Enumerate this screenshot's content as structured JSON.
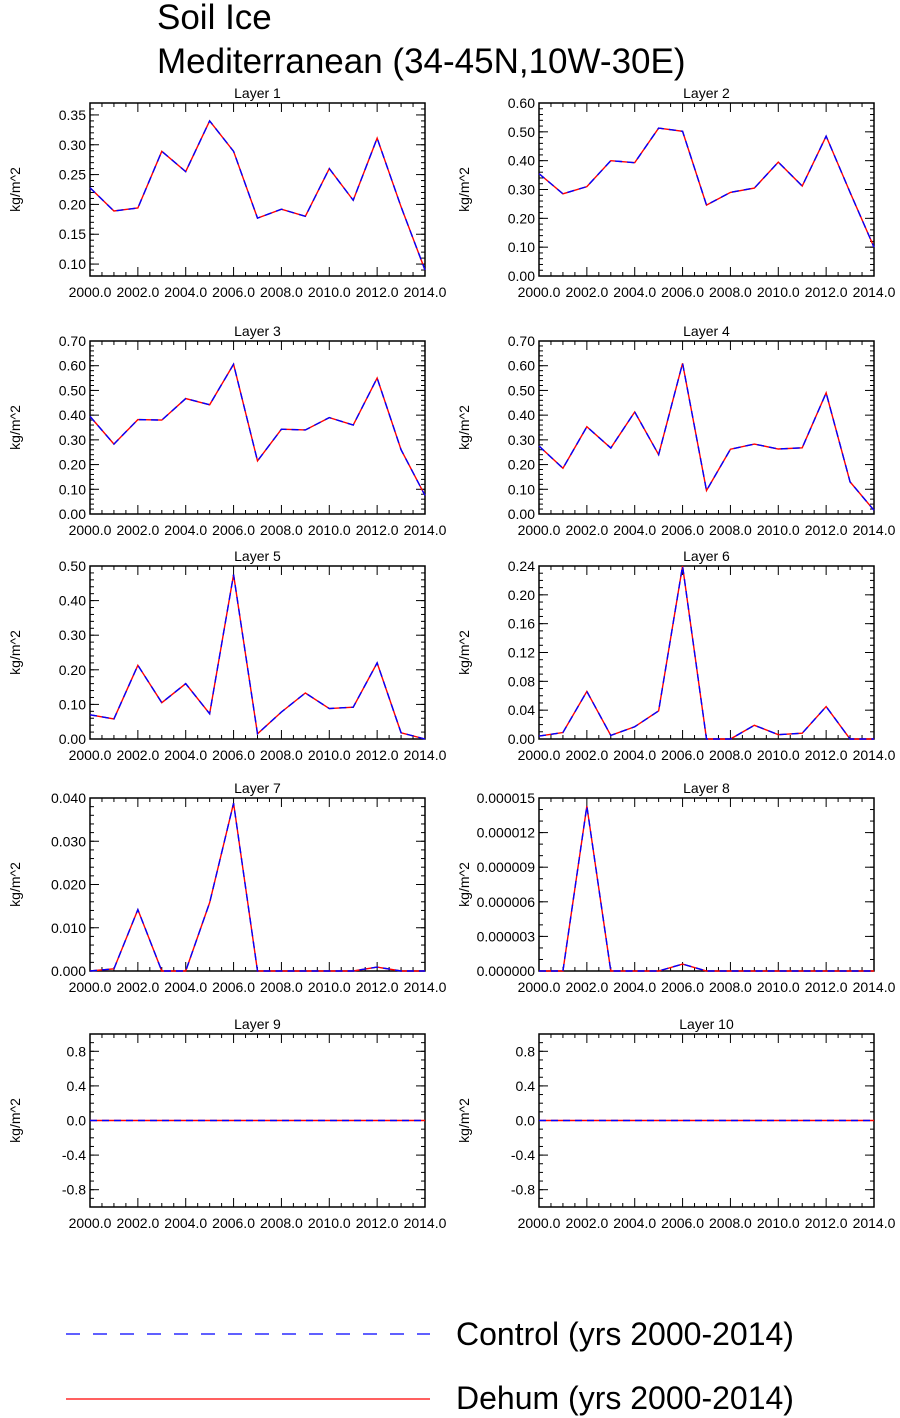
{
  "title_line1": "Soil Ice",
  "title_line2": "Mediterranean (34-45N,10W-30E)",
  "x_ticks": [
    "2000.0",
    "2002.0",
    "2004.0",
    "2006.0",
    "2008.0",
    "2010.0",
    "2012.0",
    "2014.0"
  ],
  "legend": [
    {
      "label": "Control (yrs 2000-2014)",
      "color": "#0000ff",
      "style": "dashed"
    },
    {
      "label": "Dehum (yrs 2000-2014)",
      "color": "#ff0000",
      "style": "solid"
    }
  ],
  "chart_data": [
    {
      "type": "line",
      "title": "Layer 1",
      "ylabel": "kg/m^2",
      "xlim": [
        2000,
        2014
      ],
      "ylim": [
        0.08,
        0.37
      ],
      "yticks": [
        0.1,
        0.15,
        0.2,
        0.25,
        0.3,
        0.35
      ],
      "ytick_labels": [
        "0.10",
        "0.15",
        "0.20",
        "0.25",
        "0.30",
        "0.35"
      ],
      "minor_step": 0.01,
      "x": [
        2000,
        2001,
        2002,
        2003,
        2004,
        2005,
        2006,
        2007,
        2008,
        2009,
        2010,
        2011,
        2012,
        2013,
        2014
      ],
      "series": [
        {
          "name": "Control (yrs 2000-2014)",
          "values": [
            0.228,
            0.189,
            0.194,
            0.289,
            0.255,
            0.34,
            0.289,
            0.177,
            0.192,
            0.18,
            0.26,
            0.207,
            0.311,
            0.196,
            0.09
          ]
        },
        {
          "name": "Dehum (yrs 2000-2014)",
          "values": [
            0.228,
            0.189,
            0.194,
            0.289,
            0.255,
            0.34,
            0.289,
            0.177,
            0.192,
            0.18,
            0.26,
            0.207,
            0.311,
            0.196,
            0.09
          ]
        }
      ]
    },
    {
      "type": "line",
      "title": "Layer 2",
      "ylabel": "kg/m^2",
      "xlim": [
        2000,
        2014
      ],
      "ylim": [
        0,
        0.6
      ],
      "yticks": [
        0,
        0.1,
        0.2,
        0.3,
        0.4,
        0.5,
        0.6
      ],
      "ytick_labels": [
        "0.00",
        "0.10",
        "0.20",
        "0.30",
        "0.40",
        "0.50",
        "0.60"
      ],
      "minor_step": 0.02,
      "x": [
        2000,
        2001,
        2002,
        2003,
        2004,
        2005,
        2006,
        2007,
        2008,
        2009,
        2010,
        2011,
        2012,
        2013,
        2014
      ],
      "series": [
        {
          "name": "Control (yrs 2000-2014)",
          "values": [
            0.355,
            0.285,
            0.31,
            0.4,
            0.393,
            0.513,
            0.502,
            0.246,
            0.29,
            0.305,
            0.395,
            0.312,
            0.485,
            0.29,
            0.1
          ]
        },
        {
          "name": "Dehum (yrs 2000-2014)",
          "values": [
            0.355,
            0.285,
            0.31,
            0.4,
            0.393,
            0.513,
            0.502,
            0.246,
            0.29,
            0.305,
            0.395,
            0.312,
            0.485,
            0.29,
            0.1
          ]
        }
      ]
    },
    {
      "type": "line",
      "title": "Layer 3",
      "ylabel": "kg/m^2",
      "xlim": [
        2000,
        2014
      ],
      "ylim": [
        0,
        0.7
      ],
      "yticks": [
        0,
        0.1,
        0.2,
        0.3,
        0.4,
        0.5,
        0.6,
        0.7
      ],
      "ytick_labels": [
        "0.00",
        "0.10",
        "0.20",
        "0.30",
        "0.40",
        "0.50",
        "0.60",
        "0.70"
      ],
      "minor_step": 0.02,
      "x": [
        2000,
        2001,
        2002,
        2003,
        2004,
        2005,
        2006,
        2007,
        2008,
        2009,
        2010,
        2011,
        2012,
        2013,
        2014
      ],
      "series": [
        {
          "name": "Control (yrs 2000-2014)",
          "values": [
            0.395,
            0.283,
            0.382,
            0.38,
            0.467,
            0.442,
            0.606,
            0.215,
            0.343,
            0.34,
            0.39,
            0.36,
            0.55,
            0.26,
            0.075
          ]
        },
        {
          "name": "Dehum (yrs 2000-2014)",
          "values": [
            0.395,
            0.283,
            0.382,
            0.38,
            0.467,
            0.442,
            0.606,
            0.215,
            0.343,
            0.34,
            0.39,
            0.36,
            0.55,
            0.26,
            0.075
          ]
        }
      ]
    },
    {
      "type": "line",
      "title": "Layer 4",
      "ylabel": "kg/m^2",
      "xlim": [
        2000,
        2014
      ],
      "ylim": [
        0,
        0.7
      ],
      "yticks": [
        0,
        0.1,
        0.2,
        0.3,
        0.4,
        0.5,
        0.6,
        0.7
      ],
      "ytick_labels": [
        "0.00",
        "0.10",
        "0.20",
        "0.30",
        "0.40",
        "0.50",
        "0.60",
        "0.70"
      ],
      "minor_step": 0.02,
      "x": [
        2000,
        2001,
        2002,
        2003,
        2004,
        2005,
        2006,
        2007,
        2008,
        2009,
        2010,
        2011,
        2012,
        2013,
        2014
      ],
      "series": [
        {
          "name": "Control (yrs 2000-2014)",
          "values": [
            0.275,
            0.185,
            0.353,
            0.267,
            0.413,
            0.24,
            0.61,
            0.095,
            0.262,
            0.283,
            0.263,
            0.268,
            0.49,
            0.13,
            0.015
          ]
        },
        {
          "name": "Dehum (yrs 2000-2014)",
          "values": [
            0.275,
            0.185,
            0.353,
            0.267,
            0.413,
            0.24,
            0.61,
            0.095,
            0.262,
            0.283,
            0.263,
            0.268,
            0.49,
            0.13,
            0.015
          ]
        }
      ]
    },
    {
      "type": "line",
      "title": "Layer 5",
      "ylabel": "kg/m^2",
      "xlim": [
        2000,
        2014
      ],
      "ylim": [
        0,
        0.5
      ],
      "yticks": [
        0,
        0.1,
        0.2,
        0.3,
        0.4,
        0.5
      ],
      "ytick_labels": [
        "0.00",
        "0.10",
        "0.20",
        "0.30",
        "0.40",
        "0.50"
      ],
      "minor_step": 0.02,
      "x": [
        2000,
        2001,
        2002,
        2003,
        2004,
        2005,
        2006,
        2007,
        2008,
        2009,
        2010,
        2011,
        2012,
        2013,
        2014
      ],
      "series": [
        {
          "name": "Control (yrs 2000-2014)",
          "values": [
            0.07,
            0.058,
            0.213,
            0.105,
            0.16,
            0.073,
            0.475,
            0.015,
            0.078,
            0.133,
            0.088,
            0.092,
            0.22,
            0.018,
            0.0
          ]
        },
        {
          "name": "Dehum (yrs 2000-2014)",
          "values": [
            0.07,
            0.058,
            0.213,
            0.105,
            0.16,
            0.073,
            0.475,
            0.015,
            0.078,
            0.133,
            0.088,
            0.092,
            0.22,
            0.018,
            0.0
          ]
        }
      ]
    },
    {
      "type": "line",
      "title": "Layer 6",
      "ylabel": "kg/m^2",
      "xlim": [
        2000,
        2014
      ],
      "ylim": [
        0,
        0.24
      ],
      "yticks": [
        0,
        0.04,
        0.08,
        0.12,
        0.16,
        0.2,
        0.24
      ],
      "ytick_labels": [
        "0.00",
        "0.04",
        "0.08",
        "0.12",
        "0.16",
        "0.20",
        "0.24"
      ],
      "minor_step": 0.01,
      "x": [
        2000,
        2001,
        2002,
        2003,
        2004,
        2005,
        2006,
        2007,
        2008,
        2009,
        2010,
        2011,
        2012,
        2013,
        2014
      ],
      "series": [
        {
          "name": "Control (yrs 2000-2014)",
          "values": [
            0.004,
            0.009,
            0.066,
            0.005,
            0.017,
            0.039,
            0.24,
            0.0,
            0.0,
            0.019,
            0.006,
            0.008,
            0.045,
            0.0,
            0.0
          ]
        },
        {
          "name": "Dehum (yrs 2000-2014)",
          "values": [
            0.004,
            0.009,
            0.066,
            0.005,
            0.017,
            0.039,
            0.24,
            0.0,
            0.0,
            0.019,
            0.006,
            0.008,
            0.045,
            0.0,
            0.0
          ]
        }
      ]
    },
    {
      "type": "line",
      "title": "Layer 7",
      "ylabel": "kg/m^2",
      "xlim": [
        2000,
        2014
      ],
      "ylim": [
        0,
        0.04
      ],
      "yticks": [
        0,
        0.01,
        0.02,
        0.03,
        0.04
      ],
      "ytick_labels": [
        "0.000",
        "0.010",
        "0.020",
        "0.030",
        "0.040"
      ],
      "minor_step": 0.002,
      "x": [
        2000,
        2001,
        2002,
        2003,
        2004,
        2005,
        2006,
        2007,
        2008,
        2009,
        2010,
        2011,
        2012,
        2013,
        2014
      ],
      "series": [
        {
          "name": "Control (yrs 2000-2014)",
          "values": [
            0.0,
            0.0005,
            0.0142,
            0.0,
            0.0,
            0.0158,
            0.0388,
            0.0,
            0.0,
            0.0,
            0.0,
            0.0,
            0.0009,
            0.0,
            0.0
          ]
        },
        {
          "name": "Dehum (yrs 2000-2014)",
          "values": [
            0.0,
            0.0005,
            0.0142,
            0.0,
            0.0,
            0.0158,
            0.0388,
            0.0,
            0.0,
            0.0,
            0.0,
            0.0,
            0.0009,
            0.0,
            0.0
          ]
        }
      ]
    },
    {
      "type": "line",
      "title": "Layer 8",
      "ylabel": "kg/m^2",
      "xlim": [
        2000,
        2014
      ],
      "ylim": [
        0,
        1.5e-05
      ],
      "yticks": [
        0,
        3e-06,
        6e-06,
        9e-06,
        1.2e-05,
        1.5e-05
      ],
      "ytick_labels": [
        "0.000000",
        "0.000003",
        "0.000006",
        "0.000009",
        "0.000012",
        "0.000015"
      ],
      "minor_step": 1e-06,
      "x": [
        2000,
        2001,
        2002,
        2003,
        2004,
        2005,
        2006,
        2007,
        2008,
        2009,
        2010,
        2011,
        2012,
        2013,
        2014
      ],
      "series": [
        {
          "name": "Control (yrs 2000-2014)",
          "values": [
            0,
            0,
            1.43e-05,
            0,
            0,
            0,
            6e-07,
            0,
            0,
            0,
            0,
            0,
            0,
            0,
            0
          ]
        },
        {
          "name": "Dehum (yrs 2000-2014)",
          "values": [
            0,
            0,
            1.43e-05,
            0,
            0,
            0,
            6e-07,
            0,
            0,
            0,
            0,
            0,
            0,
            0,
            0
          ]
        }
      ]
    },
    {
      "type": "line",
      "title": "Layer 9",
      "ylabel": "kg/m^2",
      "xlim": [
        2000,
        2014
      ],
      "ylim": [
        -1,
        1
      ],
      "yticks": [
        -0.8,
        -0.4,
        0,
        0.4,
        0.8
      ],
      "ytick_labels": [
        "-0.8",
        "-0.4",
        "0.0",
        "0.4",
        "0.8"
      ],
      "minor_step": 0.1,
      "x": [
        2000,
        2001,
        2002,
        2003,
        2004,
        2005,
        2006,
        2007,
        2008,
        2009,
        2010,
        2011,
        2012,
        2013,
        2014
      ],
      "series": [
        {
          "name": "Control (yrs 2000-2014)",
          "values": [
            0,
            0,
            0,
            0,
            0,
            0,
            0,
            0,
            0,
            0,
            0,
            0,
            0,
            0,
            0
          ]
        },
        {
          "name": "Dehum (yrs 2000-2014)",
          "values": [
            0,
            0,
            0,
            0,
            0,
            0,
            0,
            0,
            0,
            0,
            0,
            0,
            0,
            0,
            0
          ]
        }
      ]
    },
    {
      "type": "line",
      "title": "Layer 10",
      "ylabel": "kg/m^2",
      "xlim": [
        2000,
        2014
      ],
      "ylim": [
        -1,
        1
      ],
      "yticks": [
        -0.8,
        -0.4,
        0,
        0.4,
        0.8
      ],
      "ytick_labels": [
        "-0.8",
        "-0.4",
        "0.0",
        "0.4",
        "0.8"
      ],
      "minor_step": 0.1,
      "x": [
        2000,
        2001,
        2002,
        2003,
        2004,
        2005,
        2006,
        2007,
        2008,
        2009,
        2010,
        2011,
        2012,
        2013,
        2014
      ],
      "series": [
        {
          "name": "Control (yrs 2000-2014)",
          "values": [
            0,
            0,
            0,
            0,
            0,
            0,
            0,
            0,
            0,
            0,
            0,
            0,
            0,
            0,
            0
          ]
        },
        {
          "name": "Dehum (yrs 2000-2014)",
          "values": [
            0,
            0,
            0,
            0,
            0,
            0,
            0,
            0,
            0,
            0,
            0,
            0,
            0,
            0,
            0
          ]
        }
      ]
    }
  ]
}
